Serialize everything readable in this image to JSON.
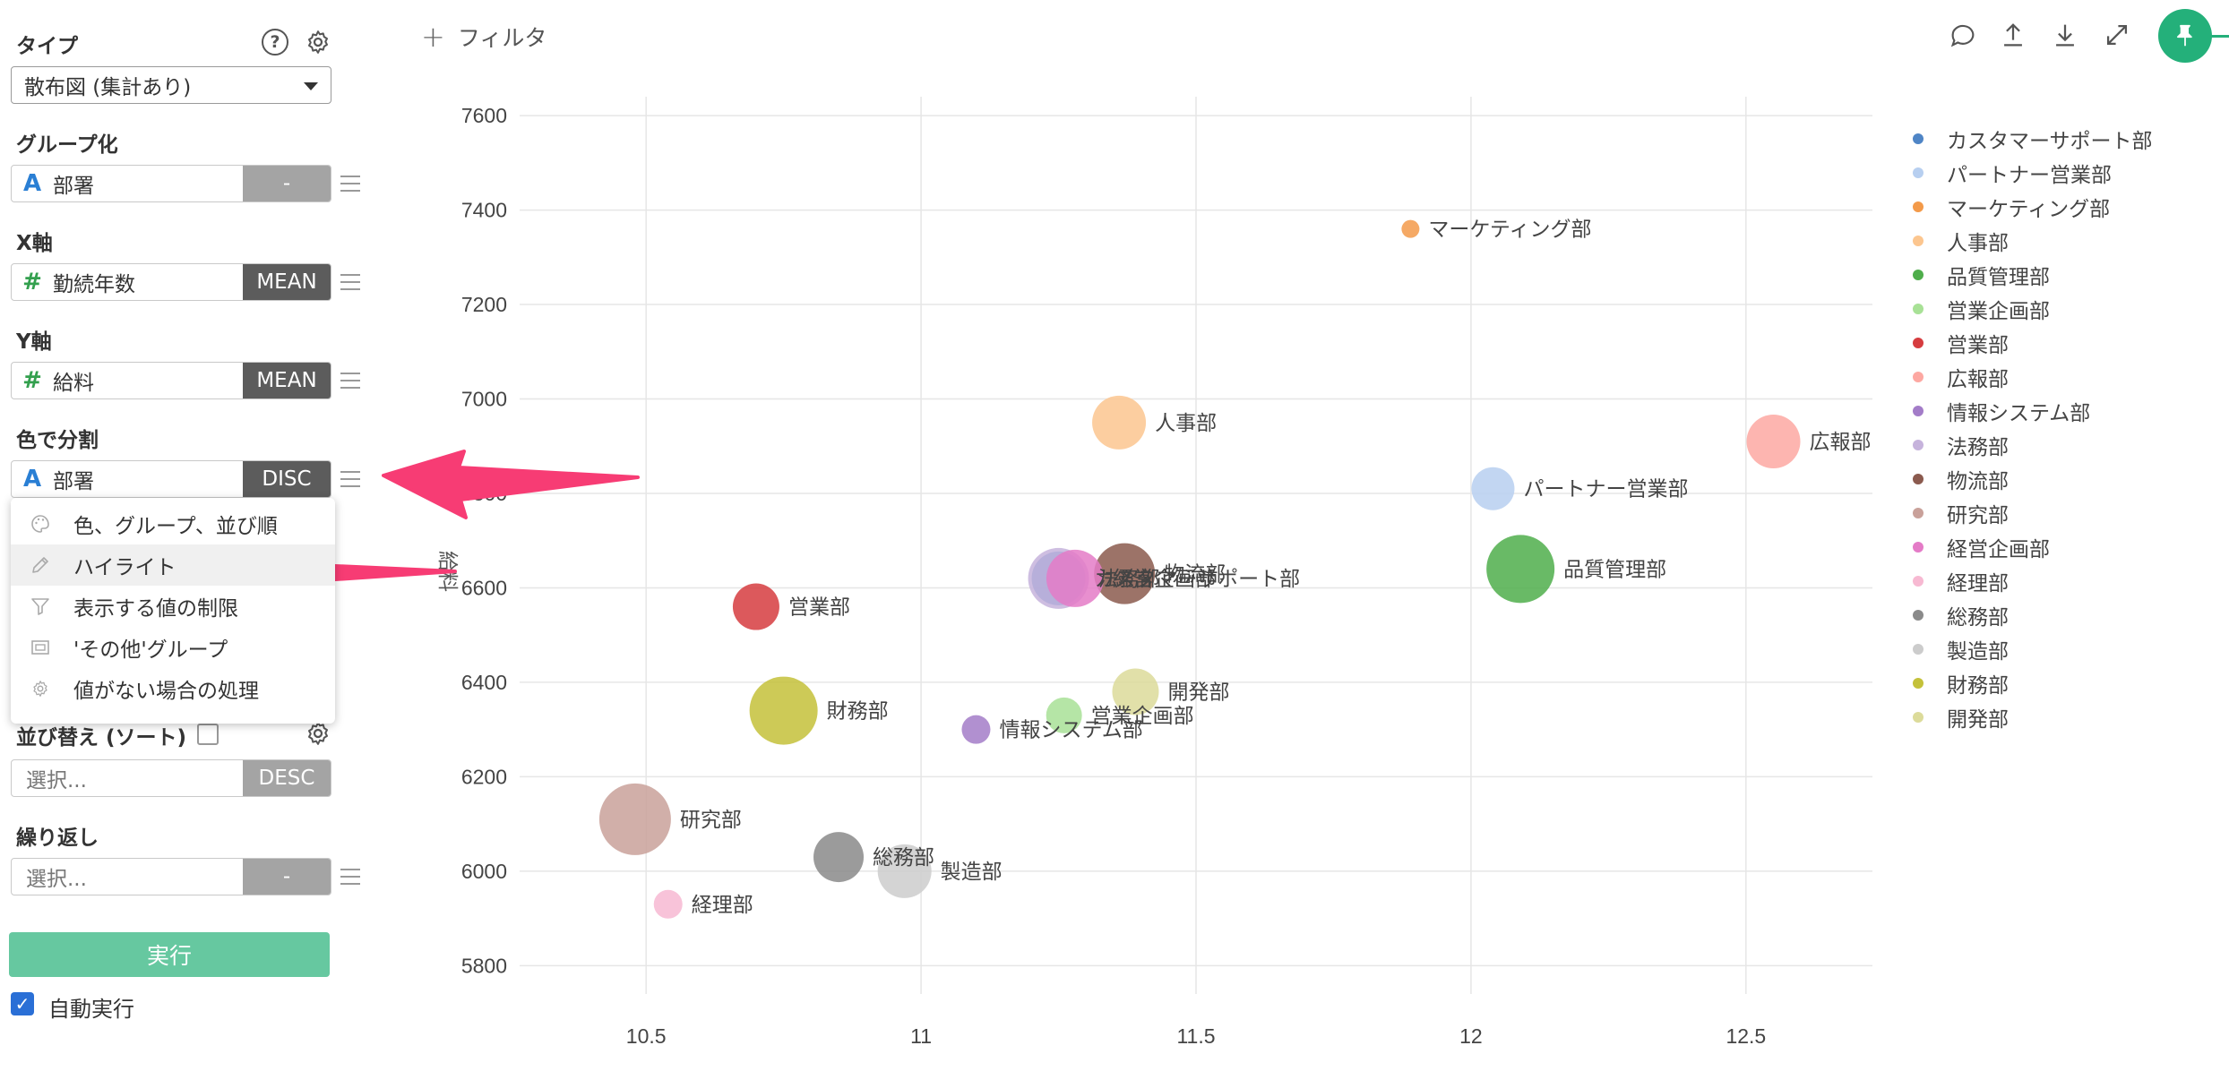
{
  "sidebar": {
    "type": {
      "label": "タイプ",
      "value": "散布図 (集計あり)"
    },
    "group": {
      "label": "グループ化",
      "field": "部署",
      "agg": "-"
    },
    "x_axis": {
      "label": "X軸",
      "field": "勤続年数",
      "agg": "MEAN"
    },
    "y_axis": {
      "label": "Y軸",
      "field": "給料",
      "agg": "MEAN"
    },
    "color": {
      "label": "色で分割",
      "field": "部署",
      "agg": "DISC"
    },
    "menu": [
      {
        "label": "色、グループ、並び順",
        "icon": "palette-icon"
      },
      {
        "label": "ハイライト",
        "icon": "pencil-icon"
      },
      {
        "label": "表示する値の制限",
        "icon": "filter-icon"
      },
      {
        "label": "'その他'グループ",
        "icon": "group-icon"
      },
      {
        "label": "値がない場合の処理",
        "icon": "gear-icon"
      }
    ],
    "sort": {
      "label": "並び替え (ソート)",
      "placeholder": "選択...",
      "agg": "DESC"
    },
    "repeat": {
      "label": "繰り返し",
      "placeholder": "選択...",
      "agg": "-"
    },
    "run_label": "実行",
    "auto_run_label": "自動実行",
    "auto_run_checked": true
  },
  "toolbar": {
    "filter_label": "フィルタ",
    "icons": [
      "comment-icon",
      "upload-icon",
      "download-icon",
      "expand-icon",
      "pin-icon"
    ],
    "accent_color": "#24b07a"
  },
  "chart_data": {
    "type": "scatter",
    "xlabel": "",
    "ylabel": "給料",
    "xlim": [
      10.27,
      12.73
    ],
    "ylim": [
      5740,
      7640
    ],
    "x_ticks": [
      10.5,
      11,
      11.5,
      12,
      12.5
    ],
    "y_ticks": [
      5800,
      6000,
      6200,
      6400,
      6600,
      6800,
      7000,
      7200,
      7400,
      7600
    ],
    "grid": true,
    "legend_position": "right",
    "series": [
      {
        "name": "カスタマーサポート部",
        "color": "#4f85c6",
        "x": 11.25,
        "y": 6620,
        "size": 30,
        "label": "カスタマーサポート部"
      },
      {
        "name": "パートナー営業部",
        "color": "#b7cff0",
        "x": 12.04,
        "y": 6810,
        "size": 24,
        "label": "パートナー営業部"
      },
      {
        "name": "マーケティング部",
        "color": "#f39a4a",
        "x": 11.89,
        "y": 7360,
        "size": 10,
        "label": "マーケティング部"
      },
      {
        "name": "人事部",
        "color": "#fcc68f",
        "x": 11.36,
        "y": 6950,
        "size": 30,
        "label": "人事部"
      },
      {
        "name": "品質管理部",
        "color": "#4fae4b",
        "x": 12.09,
        "y": 6640,
        "size": 38,
        "label": "品質管理部"
      },
      {
        "name": "営業企画部",
        "color": "#a8e196",
        "x": 11.26,
        "y": 6330,
        "size": 20,
        "label": "営業企画部"
      },
      {
        "name": "営業部",
        "color": "#d63c3f",
        "x": 10.7,
        "y": 6560,
        "size": 26,
        "label": "営業部"
      },
      {
        "name": "広報部",
        "color": "#fda8a2",
        "x": 12.55,
        "y": 6910,
        "size": 30,
        "label": "広報部"
      },
      {
        "name": "情報システム部",
        "color": "#a37cc8",
        "x": 11.1,
        "y": 6300,
        "size": 16,
        "label": "情報システム部"
      },
      {
        "name": "法務部",
        "color": "#c6b3dc",
        "x": 11.25,
        "y": 6620,
        "size": 34,
        "label": "法務部"
      },
      {
        "name": "物流部",
        "color": "#8b5a4e",
        "x": 11.37,
        "y": 6630,
        "size": 34,
        "label": "物流部"
      },
      {
        "name": "研究部",
        "color": "#c9a19a",
        "x": 10.48,
        "y": 6110,
        "size": 40,
        "label": "研究部"
      },
      {
        "name": "経営企画部",
        "color": "#e47bc7",
        "x": 11.28,
        "y": 6620,
        "size": 32,
        "label": "経営企画部"
      },
      {
        "name": "経理部",
        "color": "#f7b9d2",
        "x": 10.54,
        "y": 5930,
        "size": 16,
        "label": "経理部"
      },
      {
        "name": "総務部",
        "color": "#8a8a8a",
        "x": 10.85,
        "y": 6030,
        "size": 28,
        "label": "総務部"
      },
      {
        "name": "製造部",
        "color": "#cccccc",
        "x": 10.97,
        "y": 6000,
        "size": 30,
        "label": "製造部"
      },
      {
        "name": "財務部",
        "color": "#c4c13a",
        "x": 10.75,
        "y": 6340,
        "size": 38,
        "label": "財務部"
      },
      {
        "name": "開発部",
        "color": "#dcdb9a",
        "x": 11.39,
        "y": 6380,
        "size": 26,
        "label": "開発部"
      }
    ]
  }
}
